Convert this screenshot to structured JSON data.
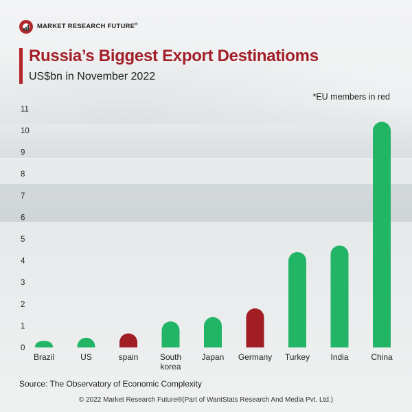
{
  "brand": {
    "name": "MARKET RESEARCH FUTURE",
    "registered": "®"
  },
  "header": {
    "title": "Russia’s Biggest Export Destinatioms",
    "subtitle": "US$bn in November 2022",
    "note": "*EU members in red"
  },
  "footer": {
    "source": "Source: The Observatory of Economic Complexity",
    "copyright": "© 2022 Market Research Future®(Part of WantStats Research And Media Pvt. Ltd.)"
  },
  "colors": {
    "non_eu": "#23b566",
    "eu": "#a01e24",
    "accent": "#a31f28"
  },
  "chart_data": {
    "type": "bar",
    "title": "Russia’s Biggest Export Destinatioms",
    "subtitle": "US$bn in November 2022",
    "categories": [
      "Brazil",
      "US",
      "spain",
      "South\nkorea",
      "Japan",
      "Germany",
      "Turkey",
      "India",
      "China"
    ],
    "values": [
      0.3,
      0.45,
      0.65,
      1.2,
      1.4,
      1.8,
      4.4,
      4.7,
      10.4
    ],
    "eu_member": [
      false,
      false,
      true,
      false,
      false,
      true,
      false,
      false,
      false
    ],
    "yticks": [
      "0",
      "1",
      "2",
      "3",
      "4",
      "5",
      "6",
      "7",
      "8",
      "9",
      "10",
      "11"
    ],
    "ylim": [
      0,
      11
    ],
    "grid": false,
    "legend": "none"
  }
}
